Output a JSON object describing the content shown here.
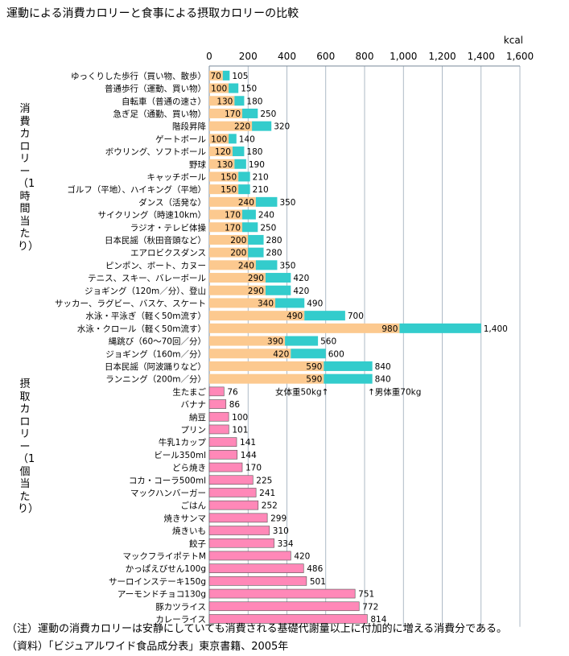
{
  "title": "運動による消費カロリーと食事による摂取カロリーの比較",
  "chart_data": {
    "type": "bar",
    "orientation": "horizontal",
    "unit": "kcal",
    "xlim": [
      0,
      1600
    ],
    "x_ticks": [
      "0",
      "200",
      "400",
      "600",
      "800",
      "1,000",
      "1,200",
      "1,400",
      "1,600"
    ],
    "grid": true,
    "exercise_group_label": "消費カロリー（1時間当たり）",
    "food_group_label": "摂取カロリー（1個当たり）",
    "weight_note_female": "女体重50kg↑",
    "weight_note_male": "↑男体重70kg",
    "colors": {
      "female": "#fcc98f",
      "male": "#33cccc",
      "food": "#ff88b8"
    },
    "exercise": [
      {
        "label": "ゆっくりした歩行（買い物、散歩）",
        "female": 70,
        "male": 105
      },
      {
        "label": "普通歩行（運動、買い物）",
        "female": 100,
        "male": 150
      },
      {
        "label": "自転車（普通の速さ）",
        "female": 130,
        "male": 180
      },
      {
        "label": "急ぎ足（通勤、買い物）",
        "female": 170,
        "male": 250
      },
      {
        "label": "階段昇降",
        "female": 220,
        "male": 320
      },
      {
        "label": "ゲートボール",
        "female": 100,
        "male": 140
      },
      {
        "label": "ボウリング、ソフトボール",
        "female": 120,
        "male": 180
      },
      {
        "label": "野球",
        "female": 130,
        "male": 190
      },
      {
        "label": "キャッチボール",
        "female": 150,
        "male": 210
      },
      {
        "label": "ゴルフ（平地）、ハイキング（平地）",
        "female": 150,
        "male": 210
      },
      {
        "label": "ダンス（活発な）",
        "female": 240,
        "male": 350
      },
      {
        "label": "サイクリング（時速10km）",
        "female": 170,
        "male": 240
      },
      {
        "label": "ラジオ・テレビ体操",
        "female": 170,
        "male": 250
      },
      {
        "label": "日本民謡（秋田音頭など）",
        "female": 200,
        "male": 280
      },
      {
        "label": "エアロビクスダンス",
        "female": 200,
        "male": 280
      },
      {
        "label": "ピンポン、ボート、カヌー",
        "female": 240,
        "male": 350
      },
      {
        "label": "テニス、スキー、バレーボール",
        "female": 290,
        "male": 420
      },
      {
        "label": "ジョギング（120m／分）、登山",
        "female": 290,
        "male": 420
      },
      {
        "label": "サッカー、ラグビー、バスケ、スケート",
        "female": 340,
        "male": 490
      },
      {
        "label": "水泳・平泳ぎ（軽く50m流す）",
        "female": 490,
        "male": 700
      },
      {
        "label": "水泳・クロール（軽く50m流す）",
        "female": 980,
        "male": 1400
      },
      {
        "label": "縄跳び（60～70回／分）",
        "female": 390,
        "male": 560
      },
      {
        "label": "ジョギング（160m／分）",
        "female": 420,
        "male": 600
      },
      {
        "label": "日本民謡（阿波踊りなど）",
        "female": 590,
        "male": 840
      },
      {
        "label": "ランニング（200m／分）",
        "female": 590,
        "male": 840
      }
    ],
    "food": [
      {
        "label": "生たまご",
        "value": 76
      },
      {
        "label": "バナナ",
        "value": 86
      },
      {
        "label": "納豆",
        "value": 100
      },
      {
        "label": "プリン",
        "value": 101
      },
      {
        "label": "牛乳1カップ",
        "value": 141
      },
      {
        "label": "ビール350ml",
        "value": 144
      },
      {
        "label": "どら焼き",
        "value": 170
      },
      {
        "label": "コカ・コーラ500ml",
        "value": 225
      },
      {
        "label": "マックハンバーガー",
        "value": 241
      },
      {
        "label": "ごはん",
        "value": 252
      },
      {
        "label": "焼きサンマ",
        "value": 299
      },
      {
        "label": "焼きいも",
        "value": 310
      },
      {
        "label": "餃子",
        "value": 334
      },
      {
        "label": "マックフライポテトM",
        "value": 420
      },
      {
        "label": "かっぱえびせん100g",
        "value": 486
      },
      {
        "label": "サーロインステーキ150g",
        "value": 501
      },
      {
        "label": "アーモンドチョコ130g",
        "value": 751
      },
      {
        "label": "豚カツライス",
        "value": 772
      },
      {
        "label": "カレーライス",
        "value": 814
      }
    ]
  },
  "notes": {
    "note": "（注）運動の消費カロリーは安静にしていても消費される基礎代謝量以上に付加的に増える消費分である。",
    "source": "（資料）「ビジュアルワイド食品成分表」東京書籍、2005年"
  }
}
